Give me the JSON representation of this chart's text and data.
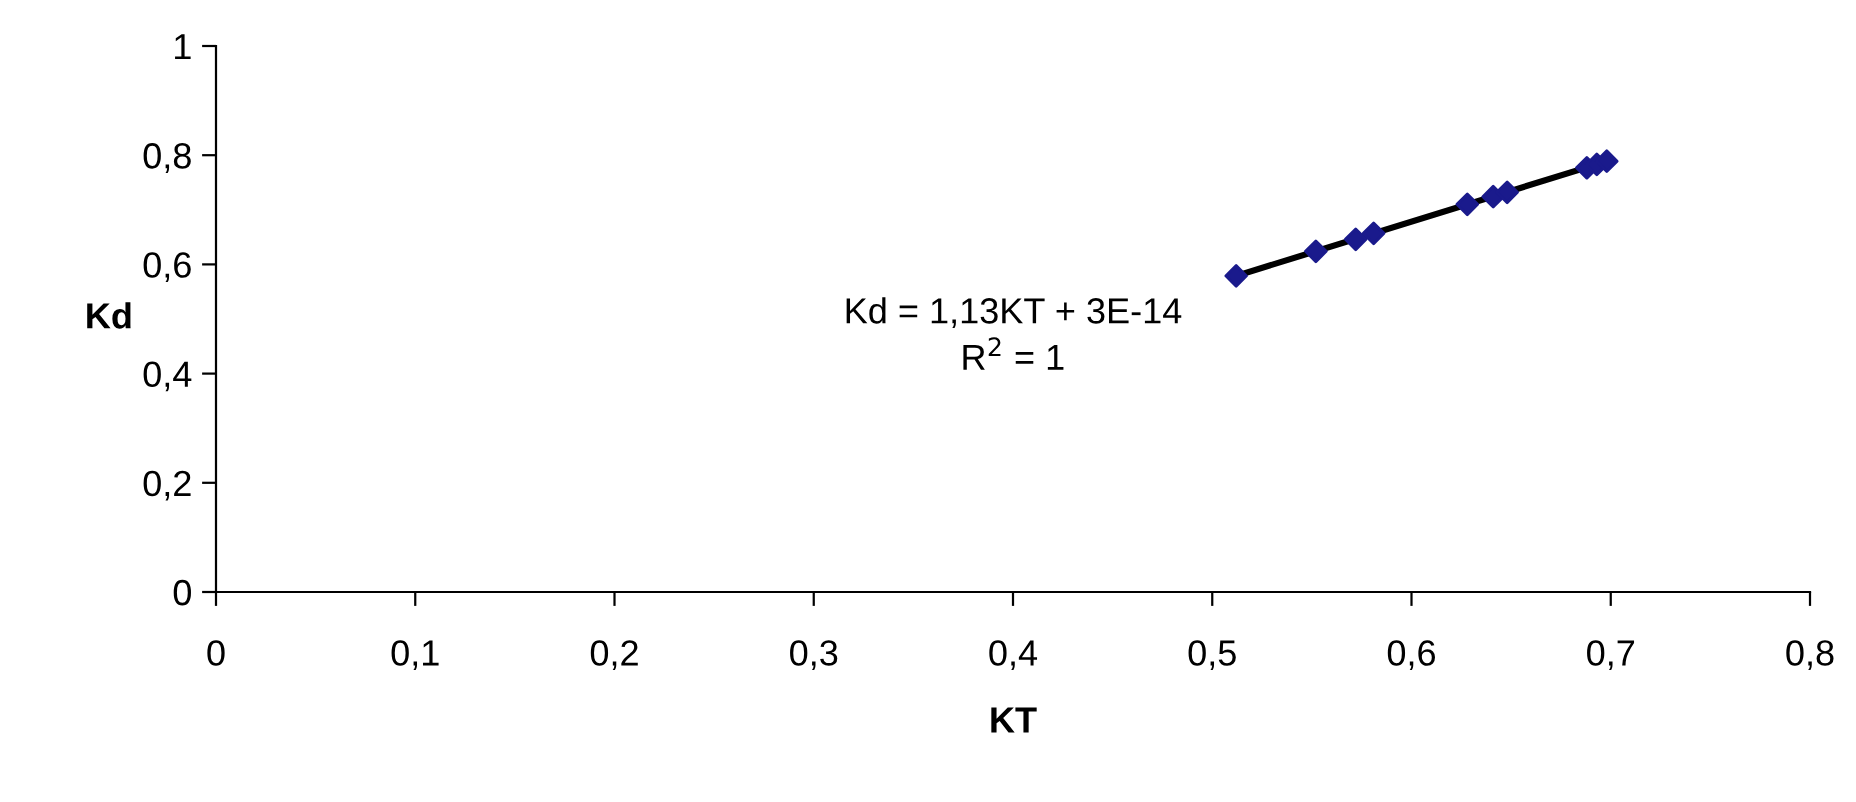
{
  "chart_data": {
    "type": "scatter",
    "xlabel": "KT",
    "ylabel": "Kd",
    "series": [
      {
        "color": "#1a1a8c",
        "marker": "diamond",
        "x": [
          0.512,
          0.552,
          0.572,
          0.581,
          0.628,
          0.641,
          0.648,
          0.688,
          0.693,
          0.698
        ],
        "values": [
          0.579,
          0.624,
          0.646,
          0.657,
          0.71,
          0.724,
          0.732,
          0.777,
          0.783,
          0.789
        ]
      },
      {
        "type": "line",
        "color": "#000000",
        "marker": "none",
        "x": [
          0.512,
          0.698
        ],
        "values": [
          0.579,
          0.789
        ]
      }
    ],
    "xlim": [
      0,
      0.8
    ],
    "ylim": [
      0,
      1
    ],
    "xticks": [
      0,
      {
        "value": 0.1,
        "label": "0,1"
      },
      {
        "value": 0.2,
        "label": "0,2"
      },
      {
        "value": 0.3,
        "label": "0,3"
      },
      {
        "value": 0.4,
        "label": "0,4"
      },
      {
        "value": 0.5,
        "label": "0,5"
      },
      {
        "value": 0.6,
        "label": "0,6"
      },
      {
        "value": 0.7,
        "label": "0,7"
      },
      {
        "value": 0.8,
        "label": "0,8"
      }
    ],
    "yticks": [
      0,
      {
        "value": 0.2,
        "label": "0,2"
      },
      {
        "value": 0.4,
        "label": "0,4"
      },
      {
        "value": 0.6,
        "label": "0,6"
      },
      {
        "value": 0.8,
        "label": "0,8"
      },
      1
    ],
    "annotations": [
      "Kd = 1,13KT + 3E-14\nR$^{2}$ = 1"
    ],
    "grid": false,
    "legend": false
  }
}
